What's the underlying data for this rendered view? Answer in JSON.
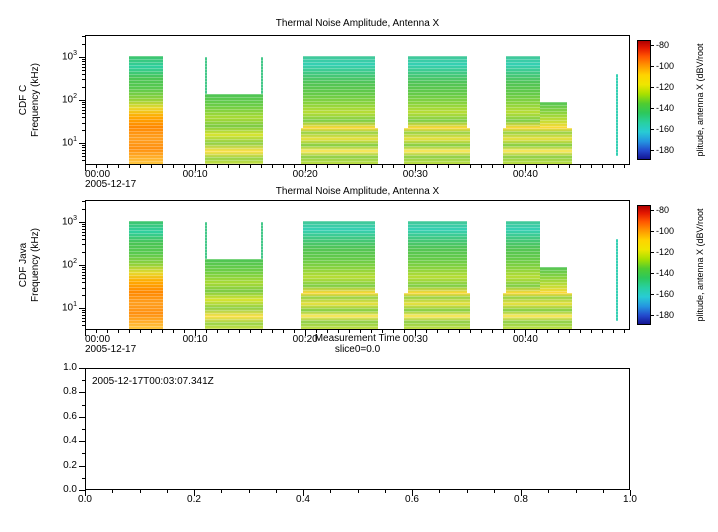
{
  "panels": [
    {
      "title": "Thermal Noise Amplitude, Antenna X",
      "ylabel_line1": "CDF C",
      "ylabel_line2": "Frequency (kHz)",
      "date_label": "2005-12-17"
    },
    {
      "title": "Thermal Noise Amplitude, Antenna X",
      "ylabel_line1": "CDF Java",
      "ylabel_line2": "Frequency (kHz)",
      "date_label": "2005-12-17",
      "xlabel": "Measurement Time",
      "slice_label": "slice0=0.0"
    }
  ],
  "colorbar": {
    "label": "plitude, antenna X (dBV/root",
    "tick_labels": [
      "-80",
      "-100",
      "-120",
      "-140",
      "-160",
      "-180"
    ],
    "tick_values": [
      -80,
      -100,
      -120,
      -140,
      -160,
      -180
    ],
    "z_min": -190,
    "z_max": -75,
    "gradient_stops": [
      [
        0,
        "#b00000"
      ],
      [
        6,
        "#e41800"
      ],
      [
        13,
        "#ff5500"
      ],
      [
        21,
        "#ff9800"
      ],
      [
        29,
        "#ffd400"
      ],
      [
        37,
        "#eee600"
      ],
      [
        45,
        "#a8e000"
      ],
      [
        53,
        "#50cc30"
      ],
      [
        61,
        "#2cc85c"
      ],
      [
        69,
        "#28d0a0"
      ],
      [
        77,
        "#28ccd4"
      ],
      [
        85,
        "#2496e0"
      ],
      [
        93,
        "#2348cc"
      ],
      [
        100,
        "#141492"
      ]
    ]
  },
  "axes": {
    "time_ticks": [
      {
        "minutes": 0,
        "label": "00:00"
      },
      {
        "minutes": 10,
        "label": "00:10"
      },
      {
        "minutes": 20,
        "label": "00:20"
      },
      {
        "minutes": 30,
        "label": "00:30"
      },
      {
        "minutes": 40,
        "label": "00:40"
      }
    ],
    "freq_base": "10",
    "freq_tick_exponents": [
      1,
      2,
      3
    ],
    "t_max_minutes": 49.5,
    "f_min_khz": 3.1,
    "f_max_khz": 3240
  },
  "gradients": {
    "A": [
      [
        0,
        "#3fc46a"
      ],
      [
        10,
        "#2fcf9f"
      ],
      [
        20,
        "#49c455"
      ],
      [
        30,
        "#59c94f"
      ],
      [
        40,
        "#8fd13b"
      ],
      [
        48,
        "#e8d92e"
      ],
      [
        56,
        "#ffaa00"
      ],
      [
        66,
        "#ff8800"
      ],
      [
        76,
        "#ffa020"
      ],
      [
        86,
        "#ff9010"
      ],
      [
        100,
        "#ffc840"
      ]
    ],
    "B": [
      [
        0,
        "#4cc455"
      ],
      [
        18,
        "#6fce45"
      ],
      [
        34,
        "#aada35"
      ],
      [
        46,
        "#7ccb45"
      ],
      [
        58,
        "#d8e430"
      ],
      [
        70,
        "#8fd04a"
      ],
      [
        82,
        "#ffe14a"
      ],
      [
        92,
        "#9ad34a"
      ],
      [
        100,
        "#c8e040"
      ]
    ],
    "C": [
      [
        0,
        "#42c796"
      ],
      [
        12,
        "#35d0b4"
      ],
      [
        25,
        "#42c87e"
      ],
      [
        38,
        "#52c455"
      ],
      [
        52,
        "#64ca4a"
      ],
      [
        66,
        "#8ad33e"
      ],
      [
        78,
        "#b8dd35"
      ],
      [
        90,
        "#7fcf4a"
      ],
      [
        100,
        "#ffd838"
      ]
    ],
    "D": [
      [
        0,
        "#ffd838"
      ],
      [
        12,
        "#9ad34a"
      ],
      [
        30,
        "#e8e040"
      ],
      [
        48,
        "#85cf45"
      ],
      [
        64,
        "#ffe85c"
      ],
      [
        80,
        "#90d04a"
      ],
      [
        100,
        "#c0e045"
      ]
    ],
    "E": [
      [
        0,
        "#52c455"
      ],
      [
        40,
        "#8ad33e"
      ],
      [
        75,
        "#c8dd35"
      ],
      [
        100,
        "#ffd838"
      ]
    ],
    "spike": [
      [
        0,
        "#45c88a"
      ],
      [
        100,
        "#45c88a"
      ]
    ],
    "spike2": [
      [
        0,
        "#35d0b4"
      ],
      [
        100,
        "#35d0b4"
      ]
    ]
  },
  "bottom_panel": {
    "annotation": "2005-12-17T00:03:07.341Z",
    "x_tick_labels": [
      "0.0",
      "0.2",
      "0.4",
      "0.6",
      "0.8",
      "1.0"
    ],
    "y_tick_labels": [
      "0.0",
      "0.2",
      "0.4",
      "0.6",
      "0.8",
      "1.0"
    ],
    "x_range": [
      0,
      1
    ],
    "y_range": [
      0,
      1
    ]
  },
  "chart_data": [
    {
      "type": "heatmap",
      "subtype": "spectrogram",
      "title": "Thermal Noise Amplitude, Antenna X",
      "ylabel": "CDF C Frequency (kHz)",
      "x_axis": {
        "date": "2005-12-17",
        "tick_labels": [
          "00:00",
          "00:10",
          "00:20",
          "00:30",
          "00:40"
        ],
        "range_minutes": [
          0,
          49.5
        ]
      },
      "y_axis": {
        "label": "Frequency (kHz)",
        "scale": "log",
        "range_khz": [
          3.1,
          3240
        ],
        "tick_labels": [
          "10^1",
          "10^2",
          "10^3"
        ]
      },
      "z_axis": {
        "label": "plitude, antenna X (dBV/root",
        "range_db": [
          -190,
          -75
        ],
        "tick_labels": [
          "-80",
          "-100",
          "-120",
          "-140",
          "-160",
          "-180"
        ]
      },
      "blocks": [
        {
          "t_start_min": 4.0,
          "t_end_min": 7.1,
          "f_min_khz": 3.2,
          "f_max_khz": 1050,
          "amp_db_range": [
            -135,
            -95
          ],
          "gradient": "A"
        },
        {
          "t_start_min": 10.9,
          "t_end_min": 16.2,
          "f_min_khz": 3.2,
          "f_max_khz": 140,
          "amp_db_range": [
            -130,
            -110
          ],
          "gradient": "B"
        },
        {
          "t_start_min": 10.9,
          "t_end_min": 11.1,
          "f_min_khz": 140,
          "f_max_khz": 1000,
          "amp_db_range": [
            -135,
            -130
          ],
          "gradient": "spike"
        },
        {
          "t_start_min": 16.0,
          "t_end_min": 16.2,
          "f_min_khz": 140,
          "f_max_khz": 1000,
          "amp_db_range": [
            -135,
            -130
          ],
          "gradient": "spike"
        },
        {
          "t_start_min": 19.8,
          "t_end_min": 26.3,
          "f_min_khz": 22,
          "f_max_khz": 1050,
          "amp_db_range": [
            -150,
            -120
          ],
          "gradient": "C"
        },
        {
          "t_start_min": 19.6,
          "t_end_min": 26.6,
          "f_min_khz": 3.2,
          "f_max_khz": 22,
          "amp_db_range": [
            -125,
            -110
          ],
          "gradient": "D"
        },
        {
          "t_start_min": 29.3,
          "t_end_min": 34.7,
          "f_min_khz": 22,
          "f_max_khz": 1050,
          "amp_db_range": [
            -150,
            -120
          ],
          "gradient": "C"
        },
        {
          "t_start_min": 29.0,
          "t_end_min": 35.0,
          "f_min_khz": 3.2,
          "f_max_khz": 22,
          "amp_db_range": [
            -125,
            -110
          ],
          "gradient": "D"
        },
        {
          "t_start_min": 38.2,
          "t_end_min": 41.3,
          "f_min_khz": 22,
          "f_max_khz": 1050,
          "amp_db_range": [
            -150,
            -120
          ],
          "gradient": "C"
        },
        {
          "t_start_min": 41.3,
          "t_end_min": 43.8,
          "f_min_khz": 22,
          "f_max_khz": 90,
          "amp_db_range": [
            -140,
            -122
          ],
          "gradient": "E"
        },
        {
          "t_start_min": 38.0,
          "t_end_min": 44.2,
          "f_min_khz": 3.2,
          "f_max_khz": 22,
          "amp_db_range": [
            -125,
            -110
          ],
          "gradient": "D"
        },
        {
          "t_start_min": 48.2,
          "t_end_min": 48.45,
          "f_min_khz": 5,
          "f_max_khz": 400,
          "amp_db_range": [
            -150,
            -145
          ],
          "gradient": "spike2"
        }
      ]
    },
    {
      "type": "heatmap",
      "subtype": "spectrogram",
      "title": "Thermal Noise Amplitude, Antenna X",
      "ylabel": "CDF Java Frequency (kHz)",
      "x_axis": {
        "label": "Measurement Time",
        "annotation": "slice0=0.0",
        "date": "2005-12-17",
        "tick_labels": [
          "00:00",
          "00:10",
          "00:20",
          "00:30",
          "00:40"
        ],
        "range_minutes": [
          0,
          49.5
        ]
      },
      "y_axis": {
        "label": "Frequency (kHz)",
        "scale": "log",
        "range_khz": [
          3.1,
          3240
        ],
        "tick_labels": [
          "10^1",
          "10^2",
          "10^3"
        ]
      },
      "z_axis": {
        "label": "plitude, antenna X (dBV/root",
        "range_db": [
          -190,
          -75
        ],
        "tick_labels": [
          "-80",
          "-100",
          "-120",
          "-140",
          "-160",
          "-180"
        ]
      },
      "blocks": [
        {
          "t_start_min": 4.0,
          "t_end_min": 7.1,
          "f_min_khz": 3.2,
          "f_max_khz": 1050,
          "amp_db_range": [
            -135,
            -95
          ],
          "gradient": "A"
        },
        {
          "t_start_min": 10.9,
          "t_end_min": 16.2,
          "f_min_khz": 3.2,
          "f_max_khz": 140,
          "amp_db_range": [
            -130,
            -110
          ],
          "gradient": "B"
        },
        {
          "t_start_min": 10.9,
          "t_end_min": 11.1,
          "f_min_khz": 140,
          "f_max_khz": 1000,
          "amp_db_range": [
            -135,
            -130
          ],
          "gradient": "spike"
        },
        {
          "t_start_min": 16.0,
          "t_end_min": 16.2,
          "f_min_khz": 140,
          "f_max_khz": 1000,
          "amp_db_range": [
            -135,
            -130
          ],
          "gradient": "spike"
        },
        {
          "t_start_min": 19.8,
          "t_end_min": 26.3,
          "f_min_khz": 22,
          "f_max_khz": 1050,
          "amp_db_range": [
            -150,
            -120
          ],
          "gradient": "C"
        },
        {
          "t_start_min": 19.6,
          "t_end_min": 26.6,
          "f_min_khz": 3.2,
          "f_max_khz": 22,
          "amp_db_range": [
            -125,
            -110
          ],
          "gradient": "D"
        },
        {
          "t_start_min": 29.3,
          "t_end_min": 34.7,
          "f_min_khz": 22,
          "f_max_khz": 1050,
          "amp_db_range": [
            -150,
            -120
          ],
          "gradient": "C"
        },
        {
          "t_start_min": 29.0,
          "t_end_min": 35.0,
          "f_min_khz": 3.2,
          "f_max_khz": 22,
          "amp_db_range": [
            -125,
            -110
          ],
          "gradient": "D"
        },
        {
          "t_start_min": 38.2,
          "t_end_min": 41.3,
          "f_min_khz": 22,
          "f_max_khz": 1050,
          "amp_db_range": [
            -150,
            -120
          ],
          "gradient": "C"
        },
        {
          "t_start_min": 41.3,
          "t_end_min": 43.8,
          "f_min_khz": 22,
          "f_max_khz": 90,
          "amp_db_range": [
            -140,
            -122
          ],
          "gradient": "E"
        },
        {
          "t_start_min": 38.0,
          "t_end_min": 44.2,
          "f_min_khz": 3.2,
          "f_max_khz": 22,
          "amp_db_range": [
            -125,
            -110
          ],
          "gradient": "D"
        },
        {
          "t_start_min": 48.2,
          "t_end_min": 48.45,
          "f_min_khz": 5,
          "f_max_khz": 400,
          "amp_db_range": [
            -150,
            -145
          ],
          "gradient": "spike2"
        }
      ]
    },
    {
      "type": "empty",
      "annotation": "2005-12-17T00:03:07.341Z",
      "x_range": [
        0,
        1
      ],
      "y_range": [
        0,
        1
      ],
      "x_ticks": [
        0,
        0.2,
        0.4,
        0.6,
        0.8,
        1.0
      ],
      "y_ticks": [
        0,
        0.2,
        0.4,
        0.6,
        0.8,
        1.0
      ]
    }
  ]
}
